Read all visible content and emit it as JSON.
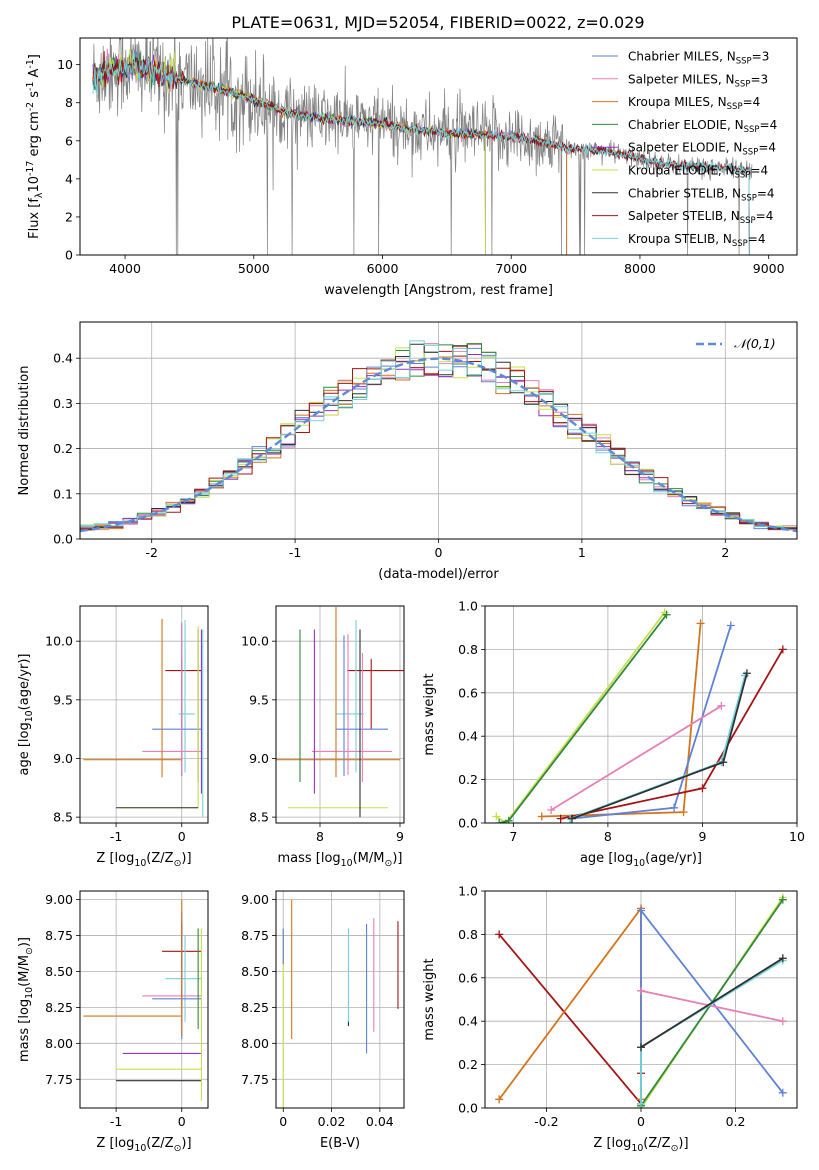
{
  "figure": {
    "title": "PLATE=0631, MJD=52054, FIBERID=0022, z=0.029"
  },
  "colors": {
    "Chabrier MILES": "#5e82d6",
    "Salpeter MILES": "#e87fb6",
    "Kroupa MILES": "#d4741a",
    "Chabrier ELODIE": "#2e8b3e",
    "Salpeter ELODIE": "#9b30c8",
    "Kroupa ELODIE": "#c8e04a",
    "Chabrier STELIB": "#303030",
    "Salpeter STELIB": "#a51414",
    "Kroupa STELIB": "#72d2dc",
    "data": "#808080",
    "gaussian": "#5b8bd9"
  },
  "chart_data": [
    {
      "id": "spectrum",
      "type": "line",
      "xlabel": "wavelength [Angstrom, rest frame]",
      "ylabel": "Flux [f$_\\lambda$10$^{-17}$ erg cm$^{-2}$ s$^{-1}$ A$^{-1}$]",
      "xlim": [
        3650,
        9220
      ],
      "ylim": [
        0,
        11.4
      ],
      "xticks": [
        4000,
        5000,
        6000,
        7000,
        8000,
        9000
      ],
      "yticks": [
        0,
        2,
        4,
        6,
        8,
        10
      ],
      "grid": false,
      "legend": "top-right",
      "continuum": {
        "x": [
          3750,
          3900,
          4050,
          4250,
          4500,
          4800,
          5000,
          5200,
          5500,
          5800,
          6000,
          6200,
          6500,
          6800,
          7000,
          7200,
          7450,
          7700,
          7900,
          8100,
          8300,
          8500,
          8800
        ],
        "y": [
          9.3,
          9.8,
          9.9,
          9.6,
          9.1,
          8.6,
          8.2,
          7.6,
          7.2,
          7.0,
          6.9,
          6.6,
          6.4,
          6.3,
          6.2,
          6.0,
          5.6,
          5.5,
          5.2,
          4.9,
          4.7,
          4.6,
          4.5
        ]
      },
      "series": [
        {
          "name": "Chabrier MILES",
          "nssp": "3"
        },
        {
          "name": "Salpeter MILES",
          "nssp": "3"
        },
        {
          "name": "Kroupa MILES",
          "nssp": "4"
        },
        {
          "name": "Chabrier ELODIE",
          "nssp": "4"
        },
        {
          "name": "Salpeter ELODIE",
          "nssp": "4"
        },
        {
          "name": "Kroupa ELODIE",
          "nssp": "4"
        },
        {
          "name": "Chabrier STELIB",
          "nssp": "4"
        },
        {
          "name": "Salpeter STELIB",
          "nssp": "4"
        },
        {
          "name": "Kroupa STELIB",
          "nssp": "4"
        }
      ],
      "model_extent": {
        "Chabrier MILES": [
          3750,
          7430
        ],
        "Salpeter MILES": [
          3750,
          7430
        ],
        "Kroupa MILES": [
          3750,
          7430
        ],
        "Chabrier ELODIE": [
          3750,
          6800
        ],
        "Salpeter ELODIE": [
          3750,
          6800
        ],
        "Kroupa ELODIE": [
          3750,
          6800
        ],
        "Chabrier STELIB": [
          3750,
          8850
        ],
        "Salpeter STELIB": [
          3750,
          8850
        ],
        "Kroupa STELIB": [
          3750,
          8850
        ]
      }
    },
    {
      "id": "residuals",
      "type": "line",
      "xlabel": "(data-model)/error",
      "ylabel": "Normed distribution",
      "xlim": [
        -2.5,
        2.5
      ],
      "ylim": [
        0,
        0.48
      ],
      "xticks": [
        -2,
        -1,
        0,
        1,
        2
      ],
      "yticks": [
        0.0,
        0.1,
        0.2,
        0.3,
        0.4
      ],
      "grid": true,
      "legend": "top-right",
      "gaussian_label": "$\\mathcal{N}(0,1)$",
      "bin_width": 0.1
    },
    {
      "id": "age-vs-Z",
      "type": "scatter",
      "xlabel": "Z [log$_{10}$(Z/Z$_\\odot$)]",
      "ylabel": "age  [log$_{10}$(age/yr)]",
      "xlim": [
        -1.55,
        0.4
      ],
      "ylim": [
        8.45,
        10.3
      ],
      "xticks": [
        -1,
        0
      ],
      "yticks": [
        8.5,
        9.0,
        9.5,
        10.0
      ],
      "grid": true,
      "errorbars": [
        {
          "c": "Salpeter STELIB",
          "x": 0.0,
          "xerr": [
            0.25,
            0.3
          ],
          "y": 9.75,
          "yerr": [
            0.5,
            0.1
          ]
        },
        {
          "c": "Kroupa STELIB",
          "x": 0.05,
          "xerr": [
            0.1,
            0.15
          ],
          "y": 9.38,
          "yerr": [
            0.5,
            0.8
          ]
        },
        {
          "c": "Chabrier MILES",
          "x": 0.0,
          "xerr": [
            0.45,
            0.3
          ],
          "y": 9.25,
          "yerr": [
            0.4,
            0.9
          ]
        },
        {
          "c": "Salpeter MILES",
          "x": 0.0,
          "xerr": [
            0.6,
            0.3
          ],
          "y": 9.06,
          "yerr": [
            0.2,
            1.1
          ]
        },
        {
          "c": "Kroupa MILES",
          "x": -0.3,
          "xerr": [
            1.2,
            0.3
          ],
          "y": 8.99,
          "yerr": [
            0.15,
            1.2
          ]
        },
        {
          "c": "Chabrier ELODIE",
          "x": 0.25,
          "xerr": [
            0.0,
            0.0
          ],
          "y": 9.2,
          "yerr": [
            0.4,
            0.9
          ]
        },
        {
          "c": "Salpeter ELODIE",
          "x": 0.3,
          "xerr": [
            0.0,
            0.0
          ],
          "y": 9.2,
          "yerr": [
            0.5,
            0.9
          ]
        },
        {
          "c": "Kroupa ELODIE",
          "x": 0.25,
          "xerr": [
            1.2,
            0.0
          ],
          "y": 8.58,
          "yerr": [
            0.0,
            1.55
          ]
        },
        {
          "c": "Chabrier STELIB",
          "x": -0.5,
          "xerr": [
            0.5,
            0.75
          ],
          "y": 8.58,
          "yerr": [
            0.0,
            0.0
          ]
        },
        {
          "c": "Kroupa STELIB",
          "x": 0.32,
          "xerr": [
            0.0,
            0.0
          ],
          "y": 9.2,
          "yerr": [
            0.7,
            0.9
          ]
        }
      ]
    },
    {
      "id": "age-vs-mass",
      "type": "scatter",
      "xlabel": "mass [log$_{10}$(M/M$_\\odot$)]",
      "ylabel": "",
      "xlim": [
        7.45,
        9.05
      ],
      "ylim": [
        8.45,
        10.3
      ],
      "xticks": [
        8,
        9
      ],
      "yticks": [
        8.5,
        9.0,
        9.5,
        10.0
      ],
      "grid": true,
      "errorbars": [
        {
          "c": "Salpeter STELIB",
          "x": 8.64,
          "xerr": [
            0.3,
            0.5
          ],
          "y": 9.75,
          "yerr": [
            0.5,
            0.1
          ]
        },
        {
          "c": "Kroupa STELIB",
          "x": 8.45,
          "xerr": [
            0.25,
            0.1
          ],
          "y": 9.38,
          "yerr": [
            0.5,
            0.8
          ]
        },
        {
          "c": "Chabrier MILES",
          "x": 8.3,
          "xerr": [
            0.1,
            0.55
          ],
          "y": 9.25,
          "yerr": [
            0.4,
            0.8
          ]
        },
        {
          "c": "Salpeter MILES",
          "x": 8.35,
          "xerr": [
            0.45,
            0.55
          ],
          "y": 9.06,
          "yerr": [
            0.2,
            1.0
          ]
        },
        {
          "c": "Kroupa MILES",
          "x": 8.2,
          "xerr": [
            0.8,
            0.8
          ],
          "y": 8.99,
          "yerr": [
            0.15,
            1.3
          ]
        },
        {
          "c": "Chabrier ELODIE",
          "x": 7.75,
          "xerr": [
            0.0,
            0.0
          ],
          "y": 9.2,
          "yerr": [
            0.4,
            0.9
          ]
        },
        {
          "c": "Salpeter ELODIE",
          "x": 7.93,
          "xerr": [
            0.0,
            0.0
          ],
          "y": 9.2,
          "yerr": [
            0.5,
            0.9
          ]
        },
        {
          "c": "Kroupa ELODIE",
          "x": 7.8,
          "xerr": [
            0.2,
            1.05
          ],
          "y": 8.58,
          "yerr": [
            0.0,
            0.0
          ]
        },
        {
          "c": "Chabrier STELIB",
          "x": 8.5,
          "xerr": [
            0.0,
            0.0
          ],
          "y": 9.2,
          "yerr": [
            0.7,
            0.9
          ]
        },
        {
          "c": "Salpeter MILES",
          "x": 8.53,
          "xerr": [
            0.0,
            0.0
          ],
          "y": 9.3,
          "yerr": [
            0.5,
            0.6
          ]
        }
      ]
    },
    {
      "id": "weight-vs-age",
      "type": "line",
      "xlabel": "age  [log$_{10}$(age/yr)]",
      "ylabel": "mass weight",
      "xlim": [
        6.7,
        10.0
      ],
      "ylim": [
        0.0,
        1.0
      ],
      "xticks": [
        7,
        8,
        9,
        10
      ],
      "yticks": [
        0.0,
        0.2,
        0.4,
        0.6,
        0.8,
        1.0
      ],
      "grid": true,
      "series": [
        {
          "c": "Kroupa ELODIE",
          "x": [
            6.82,
            6.92,
            8.6
          ],
          "y": [
            0.03,
            0.0,
            0.97
          ]
        },
        {
          "c": "Chabrier ELODIE",
          "x": [
            6.85,
            6.95,
            8.62
          ],
          "y": [
            0.0,
            0.01,
            0.96
          ]
        },
        {
          "c": "Kroupa MILES",
          "x": [
            7.3,
            8.8,
            8.98
          ],
          "y": [
            0.03,
            0.05,
            0.92
          ]
        },
        {
          "c": "Chabrier MILES",
          "x": [
            7.6,
            8.7,
            9.3
          ],
          "y": [
            0.02,
            0.07,
            0.91
          ]
        },
        {
          "c": "Salpeter STELIB",
          "x": [
            7.5,
            9.0,
            9.85
          ],
          "y": [
            0.02,
            0.16,
            0.8
          ]
        },
        {
          "c": "Salpeter MILES",
          "x": [
            7.4,
            9.2
          ],
          "y": [
            0.06,
            0.54
          ]
        },
        {
          "c": "Kroupa STELIB",
          "x": [
            7.6,
            9.2,
            9.45
          ],
          "y": [
            0.02,
            0.28,
            0.68
          ]
        },
        {
          "c": "Chabrier STELIB",
          "x": [
            7.62,
            9.22,
            9.47
          ],
          "y": [
            0.02,
            0.28,
            0.69
          ]
        }
      ]
    },
    {
      "id": "mass-vs-Z",
      "type": "scatter",
      "xlabel": "Z [log$_{10}$(Z/Z$_\\odot$)]",
      "ylabel": "mass [log$_{10}$(M/M$_\\odot$)]",
      "xlim": [
        -1.55,
        0.4
      ],
      "ylim": [
        7.55,
        9.06
      ],
      "xticks": [
        -1,
        0
      ],
      "yticks": [
        7.75,
        8.0,
        8.25,
        8.5,
        8.75,
        9.0
      ],
      "grid": true,
      "errorbars": [
        {
          "c": "Salpeter STELIB",
          "x": 0.0,
          "xerr": [
            0.3,
            0.3
          ],
          "y": 8.64,
          "yerr": [
            0.36,
            0.2
          ]
        },
        {
          "c": "Kroupa STELIB",
          "x": 0.05,
          "xerr": [
            0.3,
            0.25
          ],
          "y": 8.45,
          "yerr": [
            0.3,
            0.3
          ]
        },
        {
          "c": "Chabrier MILES",
          "x": 0.0,
          "xerr": [
            0.45,
            0.3
          ],
          "y": 8.31,
          "yerr": [
            0.28,
            0.6
          ]
        },
        {
          "c": "Salpeter MILES",
          "x": 0.0,
          "xerr": [
            0.6,
            0.3
          ],
          "y": 8.33,
          "yerr": [
            0.2,
            0.2
          ]
        },
        {
          "c": "Kroupa MILES",
          "x": -0.3,
          "xerr": [
            1.2,
            0.3
          ],
          "y": 8.19,
          "yerr": [
            0.0,
            0.0
          ]
        },
        {
          "c": "Kroupa MILES",
          "x": 0.0,
          "xerr": [
            0.0,
            0.0
          ],
          "y": 8.6,
          "yerr": [
            0.55,
            0.4
          ]
        },
        {
          "c": "Salpeter ELODIE",
          "x": -0.3,
          "xerr": [
            0.6,
            0.6
          ],
          "y": 7.93,
          "yerr": [
            0.0,
            0.0
          ]
        },
        {
          "c": "Kroupa ELODIE",
          "x": -0.5,
          "xerr": [
            0.5,
            0.8
          ],
          "y": 7.82,
          "yerr": [
            0.0,
            0.0
          ]
        },
        {
          "c": "Chabrier STELIB",
          "x": -0.5,
          "xerr": [
            0.5,
            0.8
          ],
          "y": 7.74,
          "yerr": [
            0.0,
            0.0
          ]
        },
        {
          "c": "Chabrier ELODIE",
          "x": 0.25,
          "xerr": [
            0.0,
            0.0
          ],
          "y": 8.45,
          "yerr": [
            0.35,
            0.35
          ]
        },
        {
          "c": "Kroupa ELODIE",
          "x": 0.3,
          "xerr": [
            0.0,
            0.0
          ],
          "y": 8.2,
          "yerr": [
            0.6,
            0.6
          ]
        }
      ]
    },
    {
      "id": "mass-vs-ebv",
      "type": "scatter",
      "xlabel": "E(B-V)",
      "ylabel": "",
      "xlim": [
        -0.003,
        0.05
      ],
      "ylim": [
        7.55,
        9.06
      ],
      "xticks": [
        0.0,
        0.02,
        0.04
      ],
      "yticks": [
        7.75,
        8.0,
        8.25,
        8.5,
        8.75,
        9.0
      ],
      "grid": true,
      "errorbars": [
        {
          "c": "Kroupa ELODIE",
          "x": 0.0,
          "yrange": [
            7.55,
            8.8
          ]
        },
        {
          "c": "Chabrier MILES",
          "x": 0.0,
          "yrange": [
            8.55,
            8.8
          ]
        },
        {
          "c": "Kroupa MILES",
          "x": 0.0035,
          "yrange": [
            8.03,
            9.0
          ]
        },
        {
          "c": "Chabrier STELIB",
          "x": 0.027,
          "yrange": [
            8.12,
            8.16
          ]
        },
        {
          "c": "Kroupa STELIB",
          "x": 0.027,
          "yrange": [
            8.15,
            8.8
          ]
        },
        {
          "c": "Chabrier MILES",
          "x": 0.0345,
          "yrange": [
            7.93,
            8.83
          ]
        },
        {
          "c": "Salpeter MILES",
          "x": 0.0375,
          "yrange": [
            8.08,
            8.87
          ]
        },
        {
          "c": "Salpeter STELIB",
          "x": 0.0475,
          "yrange": [
            8.24,
            8.85
          ]
        }
      ]
    },
    {
      "id": "weight-vs-Z",
      "type": "line",
      "xlabel": "Z [log$_{10}$(Z/Z$_\\odot$)]",
      "ylabel": "mass weight",
      "xlim": [
        -0.33,
        0.33
      ],
      "ylim": [
        0.0,
        1.0
      ],
      "xticks": [
        -0.2,
        0.0,
        0.2
      ],
      "yticks": [
        0.0,
        0.2,
        0.4,
        0.6,
        0.8,
        1.0
      ],
      "grid": true,
      "series": [
        {
          "c": "Salpeter STELIB",
          "x": [
            -0.3,
            0.0
          ],
          "y": [
            0.8,
            0.02
          ]
        },
        {
          "c": "Salpeter STELIB",
          "x": [
            0.0,
            0.0
          ],
          "y": [
            0.02,
            0.16
          ]
        },
        {
          "c": "Kroupa MILES",
          "x": [
            -0.3,
            0.0,
            0.0
          ],
          "y": [
            0.04,
            0.92,
            0.04
          ]
        },
        {
          "c": "Chabrier MILES",
          "x": [
            0.0,
            0.0,
            0.3
          ],
          "y": [
            0.02,
            0.91,
            0.07
          ]
        },
        {
          "c": "Salpeter MILES",
          "x": [
            0.0,
            0.3
          ],
          "y": [
            0.54,
            0.4
          ]
        },
        {
          "c": "Kroupa ELODIE",
          "x": [
            0.0,
            0.3
          ],
          "y": [
            0.0,
            0.97
          ]
        },
        {
          "c": "Chabrier ELODIE",
          "x": [
            0.0,
            0.3
          ],
          "y": [
            0.01,
            0.96
          ]
        },
        {
          "c": "Kroupa STELIB",
          "x": [
            0.0,
            0.0,
            0.3
          ],
          "y": [
            0.02,
            0.28,
            0.68
          ]
        },
        {
          "c": "Chabrier STELIB",
          "x": [
            0.0,
            0.3
          ],
          "y": [
            0.28,
            0.69
          ]
        }
      ]
    }
  ]
}
